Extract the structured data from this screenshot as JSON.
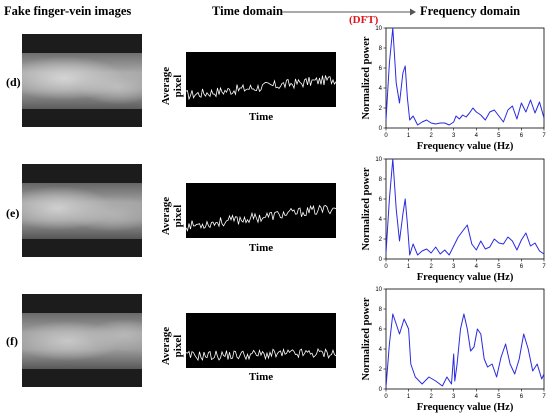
{
  "headers": {
    "fake": "Fake finger-vein images",
    "time": "Time domain",
    "dft": "(DFT)",
    "freq": "Frequency domain"
  },
  "time_axes": {
    "ylabel": "Average pixel",
    "xlabel": "Time"
  },
  "chart_data": [
    {
      "type": "line",
      "row": "(d)",
      "xlabel": "Frequency value (Hz)",
      "ylabel": "Normalized power",
      "xlim": [
        0,
        7
      ],
      "ylim": [
        0,
        10
      ],
      "xticks": [
        0,
        1,
        2,
        3,
        4,
        5,
        6,
        7
      ],
      "yticks": [
        0,
        2,
        4,
        6,
        8,
        10
      ],
      "series": [
        {
          "color": "#2a2ae0",
          "x": [
            0,
            0.15,
            0.3,
            0.45,
            0.6,
            0.75,
            0.85,
            0.95,
            1.05,
            1.2,
            1.4,
            1.6,
            1.8,
            2.0,
            2.2,
            2.4,
            2.6,
            2.8,
            3.0,
            3.1,
            3.25,
            3.4,
            3.55,
            3.7,
            3.85,
            4.0,
            4.2,
            4.4,
            4.6,
            4.8,
            5.0,
            5.2,
            5.4,
            5.6,
            5.8,
            6.0,
            6.2,
            6.4,
            6.6,
            6.8,
            7.0
          ],
          "y": [
            0.8,
            6.5,
            10.0,
            4.5,
            2.5,
            5.5,
            6.2,
            3.0,
            0.8,
            1.2,
            0.3,
            0.6,
            0.8,
            0.5,
            0.4,
            0.5,
            0.5,
            0.3,
            0.6,
            1.2,
            0.9,
            1.3,
            1.1,
            1.5,
            2.0,
            1.6,
            1.3,
            0.8,
            1.6,
            1.8,
            1.2,
            0.6,
            1.8,
            2.2,
            0.9,
            2.5,
            1.6,
            2.8,
            1.5,
            2.6,
            1.0
          ]
        }
      ]
    },
    {
      "type": "line",
      "row": "(e)",
      "xlabel": "Frequency value (Hz)",
      "ylabel": "Normalized power",
      "xlim": [
        0,
        7
      ],
      "ylim": [
        0,
        10
      ],
      "xticks": [
        0,
        1,
        2,
        3,
        4,
        5,
        6,
        7
      ],
      "yticks": [
        0,
        2,
        4,
        6,
        8,
        10
      ],
      "series": [
        {
          "color": "#2a2ae0",
          "x": [
            0,
            0.15,
            0.3,
            0.45,
            0.6,
            0.75,
            0.85,
            0.95,
            1.05,
            1.2,
            1.4,
            1.6,
            1.8,
            2.0,
            2.2,
            2.4,
            2.6,
            2.8,
            3.0,
            3.2,
            3.4,
            3.6,
            3.8,
            4.0,
            4.2,
            4.4,
            4.6,
            4.8,
            5.0,
            5.2,
            5.4,
            5.6,
            5.8,
            6.0,
            6.2,
            6.4,
            6.6,
            6.8,
            7.0
          ],
          "y": [
            0.6,
            6.0,
            10.0,
            5.0,
            1.8,
            4.5,
            6.0,
            3.5,
            0.4,
            1.5,
            0.4,
            0.8,
            1.0,
            0.6,
            1.2,
            0.5,
            0.9,
            0.4,
            1.3,
            2.2,
            2.8,
            3.4,
            1.5,
            0.9,
            1.8,
            1.0,
            1.2,
            2.0,
            1.6,
            1.5,
            2.2,
            1.8,
            0.9,
            1.9,
            2.6,
            1.3,
            1.6,
            0.8,
            0.5
          ]
        }
      ]
    },
    {
      "type": "line",
      "row": "(f)",
      "xlabel": "Frequency value (Hz)",
      "ylabel": "Normalized power",
      "xlim": [
        0,
        7
      ],
      "ylim": [
        0,
        10
      ],
      "xticks": [
        0,
        1,
        2,
        3,
        4,
        5,
        6,
        7
      ],
      "yticks": [
        0,
        2,
        4,
        6,
        8,
        10
      ],
      "series": [
        {
          "color": "#2a2ae0",
          "x": [
            0,
            0.15,
            0.3,
            0.45,
            0.6,
            0.8,
            1.0,
            1.1,
            1.3,
            1.6,
            1.9,
            2.2,
            2.5,
            2.7,
            2.9,
            3.0,
            3.05,
            3.15,
            3.3,
            3.45,
            3.6,
            3.75,
            3.9,
            4.05,
            4.2,
            4.35,
            4.5,
            4.7,
            4.9,
            5.1,
            5.3,
            5.5,
            5.7,
            5.9,
            6.1,
            6.3,
            6.5,
            6.7,
            6.9,
            7.0
          ],
          "y": [
            0.2,
            4.5,
            7.5,
            6.5,
            5.5,
            7.0,
            6.0,
            2.5,
            1.2,
            0.5,
            1.2,
            0.8,
            0.3,
            1.2,
            0.5,
            3.5,
            0.8,
            2.5,
            6.0,
            7.5,
            6.0,
            3.8,
            4.2,
            6.0,
            5.5,
            3.0,
            2.2,
            2.5,
            1.2,
            3.2,
            4.5,
            2.5,
            1.5,
            3.0,
            5.5,
            4.0,
            1.8,
            2.5,
            1.0,
            1.5
          ]
        }
      ]
    }
  ]
}
